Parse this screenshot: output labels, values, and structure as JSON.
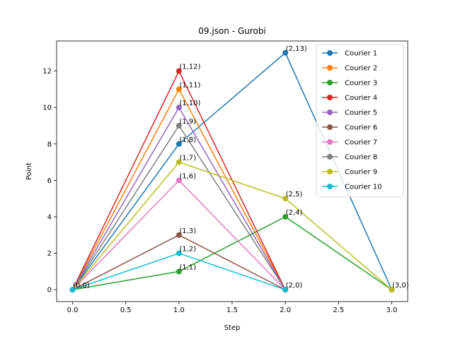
{
  "chart_data": {
    "type": "line",
    "title": "09.json - Gurobi",
    "xlabel": "Step",
    "ylabel": "Point",
    "xlim": [
      -0.15,
      3.15
    ],
    "ylim": [
      -0.65,
      13.65
    ],
    "xticks": [
      0.0,
      0.5,
      1.0,
      1.5,
      2.0,
      2.5,
      3.0
    ],
    "xtick_labels": [
      "0.0",
      "0.5",
      "1.0",
      "1.5",
      "2.0",
      "2.5",
      "3.0"
    ],
    "yticks": [
      0,
      2,
      4,
      6,
      8,
      10,
      12
    ],
    "ytick_labels": [
      "0",
      "2",
      "4",
      "6",
      "8",
      "10",
      "12"
    ],
    "legend_position": "top-right",
    "series": [
      {
        "name": "Courier 1",
        "color": "#1f77b4",
        "x": [
          0,
          1,
          2,
          3
        ],
        "y": [
          0,
          8,
          13,
          0
        ]
      },
      {
        "name": "Courier 2",
        "color": "#ff7f0e",
        "x": [
          0,
          1,
          2
        ],
        "y": [
          0,
          11,
          0
        ]
      },
      {
        "name": "Courier 3",
        "color": "#2ca02c",
        "x": [
          0,
          1,
          2,
          3
        ],
        "y": [
          0,
          1,
          4,
          0
        ]
      },
      {
        "name": "Courier 4",
        "color": "#d62728",
        "x": [
          0,
          1,
          2
        ],
        "y": [
          0,
          12,
          0
        ]
      },
      {
        "name": "Courier 5",
        "color": "#9467bd",
        "x": [
          0,
          1,
          2
        ],
        "y": [
          0,
          10,
          0
        ]
      },
      {
        "name": "Courier 6",
        "color": "#8c564b",
        "x": [
          0,
          1,
          2
        ],
        "y": [
          0,
          3,
          0
        ]
      },
      {
        "name": "Courier 7",
        "color": "#e377c2",
        "x": [
          0,
          1,
          2
        ],
        "y": [
          0,
          6,
          0
        ]
      },
      {
        "name": "Courier 8",
        "color": "#7f7f7f",
        "x": [
          0,
          1,
          2
        ],
        "y": [
          0,
          9,
          0
        ]
      },
      {
        "name": "Courier 9",
        "color": "#bcbd22",
        "x": [
          0,
          1,
          2,
          3
        ],
        "y": [
          0,
          7,
          5,
          0
        ]
      },
      {
        "name": "Courier 10",
        "color": "#17becf",
        "x": [
          0,
          1,
          2
        ],
        "y": [
          0,
          2,
          0
        ]
      }
    ],
    "annotations": [
      {
        "text": "(0,0)",
        "x": 0,
        "y": 0
      },
      {
        "text": "(1,8)",
        "x": 1,
        "y": 8
      },
      {
        "text": "(2,13)",
        "x": 2,
        "y": 13
      },
      {
        "text": "(3,0)",
        "x": 3,
        "y": 0
      },
      {
        "text": "(1,11)",
        "x": 1,
        "y": 11
      },
      {
        "text": "(2,0)",
        "x": 2,
        "y": 0
      },
      {
        "text": "(1,1)",
        "x": 1,
        "y": 1
      },
      {
        "text": "(2,4)",
        "x": 2,
        "y": 4
      },
      {
        "text": "(1,12)",
        "x": 1,
        "y": 12
      },
      {
        "text": "(1,10)",
        "x": 1,
        "y": 10
      },
      {
        "text": "(1,3)",
        "x": 1,
        "y": 3
      },
      {
        "text": "(1,6)",
        "x": 1,
        "y": 6
      },
      {
        "text": "(1,9)",
        "x": 1,
        "y": 9
      },
      {
        "text": "(1,7)",
        "x": 1,
        "y": 7
      },
      {
        "text": "(2,5)",
        "x": 2,
        "y": 5
      },
      {
        "text": "(1,2)",
        "x": 1,
        "y": 2
      }
    ]
  }
}
